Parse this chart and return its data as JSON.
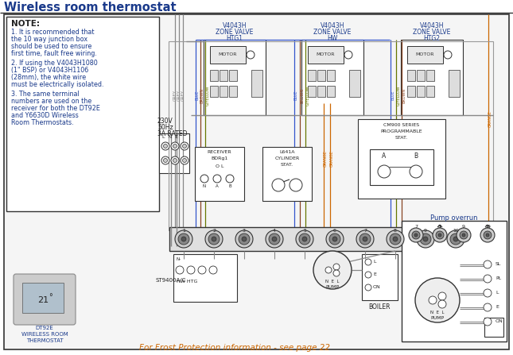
{
  "title": "Wireless room thermostat",
  "title_color": "#1a3a8b",
  "bg_color": "#ffffff",
  "note_title": "NOTE:",
  "note_lines": [
    "1. It is recommended that",
    "the 10 way junction box",
    "should be used to ensure",
    "first time, fault free wiring.",
    "",
    "2. If using the V4043H1080",
    "(1\" BSP) or V4043H1106",
    "(28mm), the white wire",
    "must be electrically isolated.",
    "",
    "3. The same terminal",
    "numbers are used on the",
    "receiver for both the DT92E",
    "and Y6630D Wireless",
    "Room Thermostats."
  ],
  "valve1_label": [
    "V4043H",
    "ZONE VALVE",
    "HTG1"
  ],
  "valve2_label": [
    "V4043H",
    "ZONE VALVE",
    "HW"
  ],
  "valve3_label": [
    "V4043H",
    "ZONE VALVE",
    "HTG2"
  ],
  "power_label": [
    "230V",
    "50Hz",
    "3A RATED"
  ],
  "receiver_label": [
    "RECEIVER",
    "BDRg1"
  ],
  "cylinder_label": [
    "L641A",
    "CYLINDER",
    "STAT."
  ],
  "cm900_label": [
    "CM900 SERIES",
    "PROGRAMMABLE",
    "STAT."
  ],
  "pump_overrun_label": "Pump overrun",
  "st9400_label": "ST9400A/C",
  "hw_htg_label": "HW HTG",
  "boiler_label": "BOILER",
  "frost_label": "For Frost Protection information - see page 22",
  "dt92e_label": [
    "DT92E",
    "WIRELESS ROOM",
    "THERMOSTAT"
  ],
  "text_color": "#1a3a8b",
  "wire_grey": "#888888",
  "wire_blue": "#3355cc",
  "wire_brown": "#884422",
  "wire_gyellow": "#667700",
  "wire_orange": "#cc6600",
  "box_color": "#333333",
  "label_color": "#555577"
}
